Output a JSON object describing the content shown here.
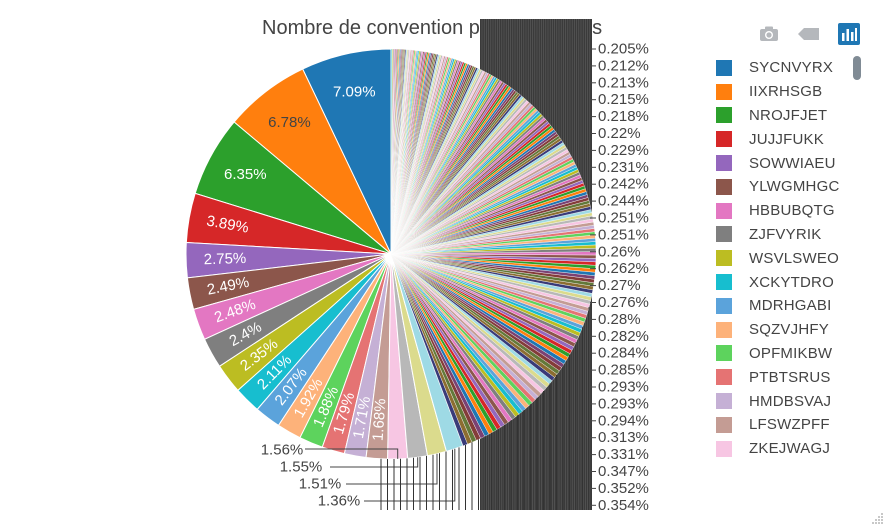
{
  "title": "Nombre de convention par enterprises",
  "modebar": {
    "icons": [
      "camera-icon",
      "tag-icon",
      "bar-chart-icon"
    ],
    "colors": {
      "inactive": "#b5b8bc",
      "active": "#1f77b4"
    }
  },
  "legend_entries": [
    {
      "label": "SYCNVYRX",
      "color": "#1f77b4"
    },
    {
      "label": "IIXRHSGB",
      "color": "#ff7f0e"
    },
    {
      "label": "NROJFJET",
      "color": "#2ca02c"
    },
    {
      "label": "JUJJFUKK",
      "color": "#d62728"
    },
    {
      "label": "SOWWIAEU",
      "color": "#9467bd"
    },
    {
      "label": "YLWGMHGC",
      "color": "#8c564b"
    },
    {
      "label": "HBBUBQTG",
      "color": "#e377c2"
    },
    {
      "label": "ZJFVYRIK",
      "color": "#7f7f7f"
    },
    {
      "label": "WSVLSWEO",
      "color": "#bcbd22"
    },
    {
      "label": "XCKYTDRO",
      "color": "#17becf"
    },
    {
      "label": "MDRHGABI",
      "color": "#5ba3db"
    },
    {
      "label": "SQZVJHFY",
      "color": "#fdb27a"
    },
    {
      "label": "OPFMIKBW",
      "color": "#5dd35d"
    },
    {
      "label": "PTBTSRUS",
      "color": "#e57373"
    },
    {
      "label": "HMDBSVAJ",
      "color": "#c5b0d5"
    },
    {
      "label": "LFSWZPFF",
      "color": "#c49c94"
    },
    {
      "label": "ZKEJWAGJ",
      "color": "#f7c6e3"
    }
  ],
  "chart_data": {
    "type": "pie",
    "title": "Nombre de convention par enterprises",
    "labeled_slices": [
      {
        "category": "SYCNVYRX",
        "percent": 7.09
      },
      {
        "category": "IIXRHSGB",
        "percent": 6.78
      },
      {
        "category": "NROJFJET",
        "percent": 6.35
      },
      {
        "category": "JUJJFUKK",
        "percent": 3.89
      },
      {
        "category": "SOWWIAEU",
        "percent": 2.75
      },
      {
        "category": "YLWGMHGC",
        "percent": 2.49
      },
      {
        "category": "HBBUBQTG",
        "percent": 2.48
      },
      {
        "category": "ZJFVYRIK",
        "percent": 2.4
      },
      {
        "category": "WSVLSWEO",
        "percent": 2.35
      },
      {
        "category": "XCKYTDRO",
        "percent": 2.11
      },
      {
        "category": "MDRHGABI",
        "percent": 2.07
      },
      {
        "category": "SQZVJHFY",
        "percent": 1.92
      },
      {
        "category": "OPFMIKBW",
        "percent": 1.88
      },
      {
        "category": "PTBTSRUS",
        "percent": 1.79
      },
      {
        "category": "HMDBSVAJ",
        "percent": 1.71
      },
      {
        "category": "LFSWZPFF",
        "percent": 1.68
      }
    ],
    "outside_labels_bottom": [
      "1.56%",
      "1.55%",
      "1.51%",
      "1.36%"
    ],
    "outside_labels_right": [
      "0.205%",
      "0.212%",
      "0.213%",
      "0.215%",
      "0.218%",
      "0.22%",
      "0.229%",
      "0.231%",
      "0.242%",
      "0.244%",
      "0.251%",
      "0.251%",
      "0.26%",
      "0.262%",
      "0.27%",
      "0.276%",
      "0.28%",
      "0.282%",
      "0.284%",
      "0.285%",
      "0.293%",
      "0.293%",
      "0.294%",
      "0.313%",
      "0.331%",
      "0.347%",
      "0.352%",
      "0.354%"
    ],
    "label_format": "percent",
    "palette": [
      "#1f77b4",
      "#ff7f0e",
      "#2ca02c",
      "#d62728",
      "#9467bd",
      "#8c564b",
      "#e377c2",
      "#7f7f7f",
      "#bcbd22",
      "#17becf",
      "#5ba3db",
      "#fdb27a",
      "#5dd35d",
      "#e57373",
      "#c5b0d5",
      "#c49c94",
      "#f7c6e3",
      "#b8b8b8",
      "#dbdb8d",
      "#9edae5",
      "#393b79",
      "#8c6d31",
      "#637939",
      "#843c39",
      "#7b4173"
    ]
  }
}
